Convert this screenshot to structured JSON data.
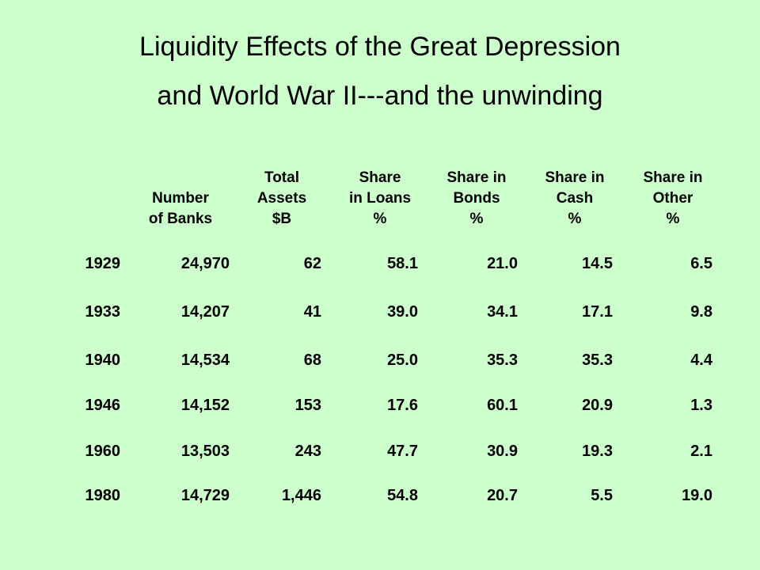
{
  "title": {
    "line1": "Liquidity Effects of the Great Depression",
    "line2": "and World War II---and the unwinding"
  },
  "table": {
    "headers": [
      {
        "lines": [
          "",
          "Number",
          "of Banks"
        ]
      },
      {
        "lines": [
          "Total",
          "Assets",
          "$B"
        ]
      },
      {
        "lines": [
          "Share",
          "in Loans",
          "%"
        ]
      },
      {
        "lines": [
          "Share in",
          "Bonds",
          "%"
        ]
      },
      {
        "lines": [
          "Share in",
          "Cash",
          "%"
        ]
      },
      {
        "lines": [
          "Share in",
          "Other",
          "%"
        ]
      }
    ],
    "rows": [
      {
        "year": "1929",
        "banks": "24,970",
        "assets": "62",
        "loans": "58.1",
        "bonds": "21.0",
        "cash": "14.5",
        "other": "6.5"
      },
      {
        "year": "1933",
        "banks": "14,207",
        "assets": "41",
        "loans": "39.0",
        "bonds": "34.1",
        "cash": "17.1",
        "other": "9.8"
      },
      {
        "year": "1940",
        "banks": "14,534",
        "assets": "68",
        "loans": "25.0",
        "bonds": "35.3",
        "cash": "35.3",
        "other": "4.4"
      },
      {
        "year": "1946",
        "banks": "14,152",
        "assets": "153",
        "loans": "17.6",
        "bonds": "60.1",
        "cash": "20.9",
        "other": "1.3"
      },
      {
        "year": "1960",
        "banks": "13,503",
        "assets": "243",
        "loans": "47.7",
        "bonds": "30.9",
        "cash": "19.3",
        "other": "2.1"
      },
      {
        "year": "1980",
        "banks": "14,729",
        "assets": "1,446",
        "loans": "54.8",
        "bonds": "20.7",
        "cash": "5.5",
        "other": "19.0"
      }
    ]
  }
}
